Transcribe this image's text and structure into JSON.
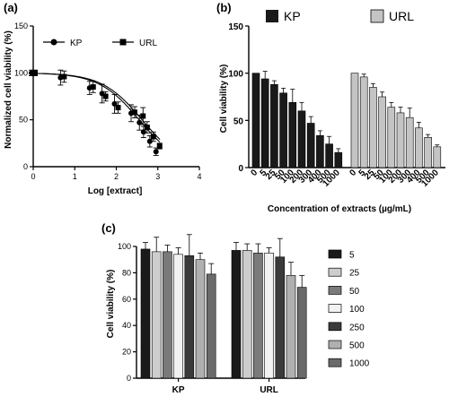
{
  "chart_data": [
    {
      "panel": "(a)",
      "type": "line",
      "xlabel": "Log [extract]",
      "ylabel": "Normalized cell viability (%)",
      "xlim": [
        0,
        4
      ],
      "ylim": [
        0,
        150
      ],
      "xticks": [
        0,
        1,
        2,
        3,
        4
      ],
      "yticks": [
        0,
        50,
        100,
        150
      ],
      "legend_position": "top",
      "series": [
        {
          "name": "KP",
          "marker": "circle",
          "x": [
            0,
            0.7,
            1.4,
            1.7,
            2.0,
            2.4,
            2.6,
            2.7,
            2.85,
            3.0
          ],
          "y": [
            100,
            95,
            84,
            78,
            67,
            57,
            47,
            37,
            27,
            16
          ],
          "err": [
            3,
            8,
            7,
            10,
            10,
            9,
            8,
            6,
            6,
            4
          ],
          "fit": {
            "top": 100,
            "bottom": 0,
            "logIC50": 2.55,
            "hill": -0.9
          }
        },
        {
          "name": "URL",
          "marker": "square",
          "x": [
            0,
            0.7,
            1.4,
            1.7,
            2.0,
            2.4,
            2.6,
            2.7,
            2.85,
            3.0
          ],
          "y": [
            100,
            96,
            85,
            75,
            63,
            58,
            54,
            42,
            32,
            22
          ],
          "err": [
            3,
            6,
            6,
            5,
            6,
            6,
            9,
            6,
            5,
            3
          ],
          "fit": {
            "top": 100,
            "bottom": 0,
            "logIC50": 2.62,
            "hill": -0.9
          }
        }
      ]
    },
    {
      "panel": "(b)",
      "type": "bar",
      "xlabel": "Concentration of extracts (µg/mL)",
      "ylabel": "Cell viability (%)",
      "ylim": [
        0,
        150
      ],
      "yticks": [
        0,
        50,
        100,
        150
      ],
      "legend_position": "top",
      "categories": [
        "0",
        "5",
        "25",
        "50",
        "100",
        "200",
        "300",
        "400",
        "500",
        "1000"
      ],
      "series": [
        {
          "name": "KP",
          "color": "#1a1a1a",
          "values": [
            100,
            94,
            88,
            79,
            69,
            60,
            47,
            34,
            25,
            16
          ],
          "err": [
            0,
            8,
            4,
            5,
            14,
            9,
            7,
            5,
            8,
            4
          ]
        },
        {
          "name": "URL",
          "color": "#c4c4c4",
          "values": [
            100,
            96,
            85,
            75,
            64,
            58,
            53,
            42,
            32,
            22
          ],
          "err": [
            0,
            3,
            4,
            5,
            5,
            6,
            10,
            6,
            3,
            2
          ]
        }
      ]
    },
    {
      "panel": "(c)",
      "type": "bar",
      "xlabel": "",
      "ylabel": "Cell viability (%)",
      "ylim": [
        0,
        100
      ],
      "yticks": [
        0,
        20,
        40,
        60,
        80,
        100
      ],
      "legend_position": "right",
      "categories": [
        "KP",
        "URL"
      ],
      "series": [
        {
          "name": "5",
          "color": "#1a1a1a",
          "values": [
            98,
            97
          ],
          "err": [
            5,
            6
          ]
        },
        {
          "name": "25",
          "color": "#cdcdcd",
          "values": [
            96,
            97
          ],
          "err": [
            11,
            5
          ]
        },
        {
          "name": "50",
          "color": "#7a7a7a",
          "values": [
            96,
            95
          ],
          "err": [
            5,
            7
          ]
        },
        {
          "name": "100",
          "color": "#f2f2f2",
          "values": [
            94,
            95
          ],
          "err": [
            5,
            4
          ]
        },
        {
          "name": "250",
          "color": "#3a3a3a",
          "values": [
            93,
            92
          ],
          "err": [
            16,
            14
          ]
        },
        {
          "name": "500",
          "color": "#b0b0b0",
          "values": [
            90,
            78
          ],
          "err": [
            5,
            10
          ]
        },
        {
          "name": "1000",
          "color": "#6a6a6a",
          "values": [
            79,
            69
          ],
          "err": [
            8,
            9
          ]
        }
      ]
    }
  ]
}
